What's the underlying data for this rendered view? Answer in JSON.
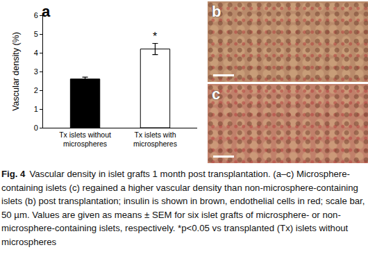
{
  "chart_data": {
    "type": "bar",
    "categories": [
      "Tx islets without microspheres",
      "Tx islets with microspheres"
    ],
    "values": [
      2.6,
      4.2
    ],
    "errors": [
      0.1,
      0.3
    ],
    "colors": [
      "#000000",
      "#ffffff"
    ],
    "ylabel": "Vascular density (%)",
    "ylim": [
      0,
      6
    ],
    "yticks": [
      0,
      1,
      2,
      3,
      4,
      5,
      6
    ],
    "grid": false,
    "annotations": [
      {
        "text": "*",
        "category": "Tx islets with microspheres"
      }
    ]
  },
  "panel_labels": [
    "a",
    "b",
    "c"
  ],
  "caption": {
    "label": "Fig. 4",
    "text": "Vascular density in islet grafts 1 month post transplantation. (a–c) Microsphere-containing islets (c) regained a higher vascular density than non-microsphere-containing islets (b) post transplantation; insulin is shown in brown, endothelial cells in red; scale bar, 50 µm. Values are given as means ± SEM for six islet grafts of microsphere- or non-microsphere-containing islets, respectively. *p<0.05 vs transplanted (Tx) islets without microspheres"
  }
}
